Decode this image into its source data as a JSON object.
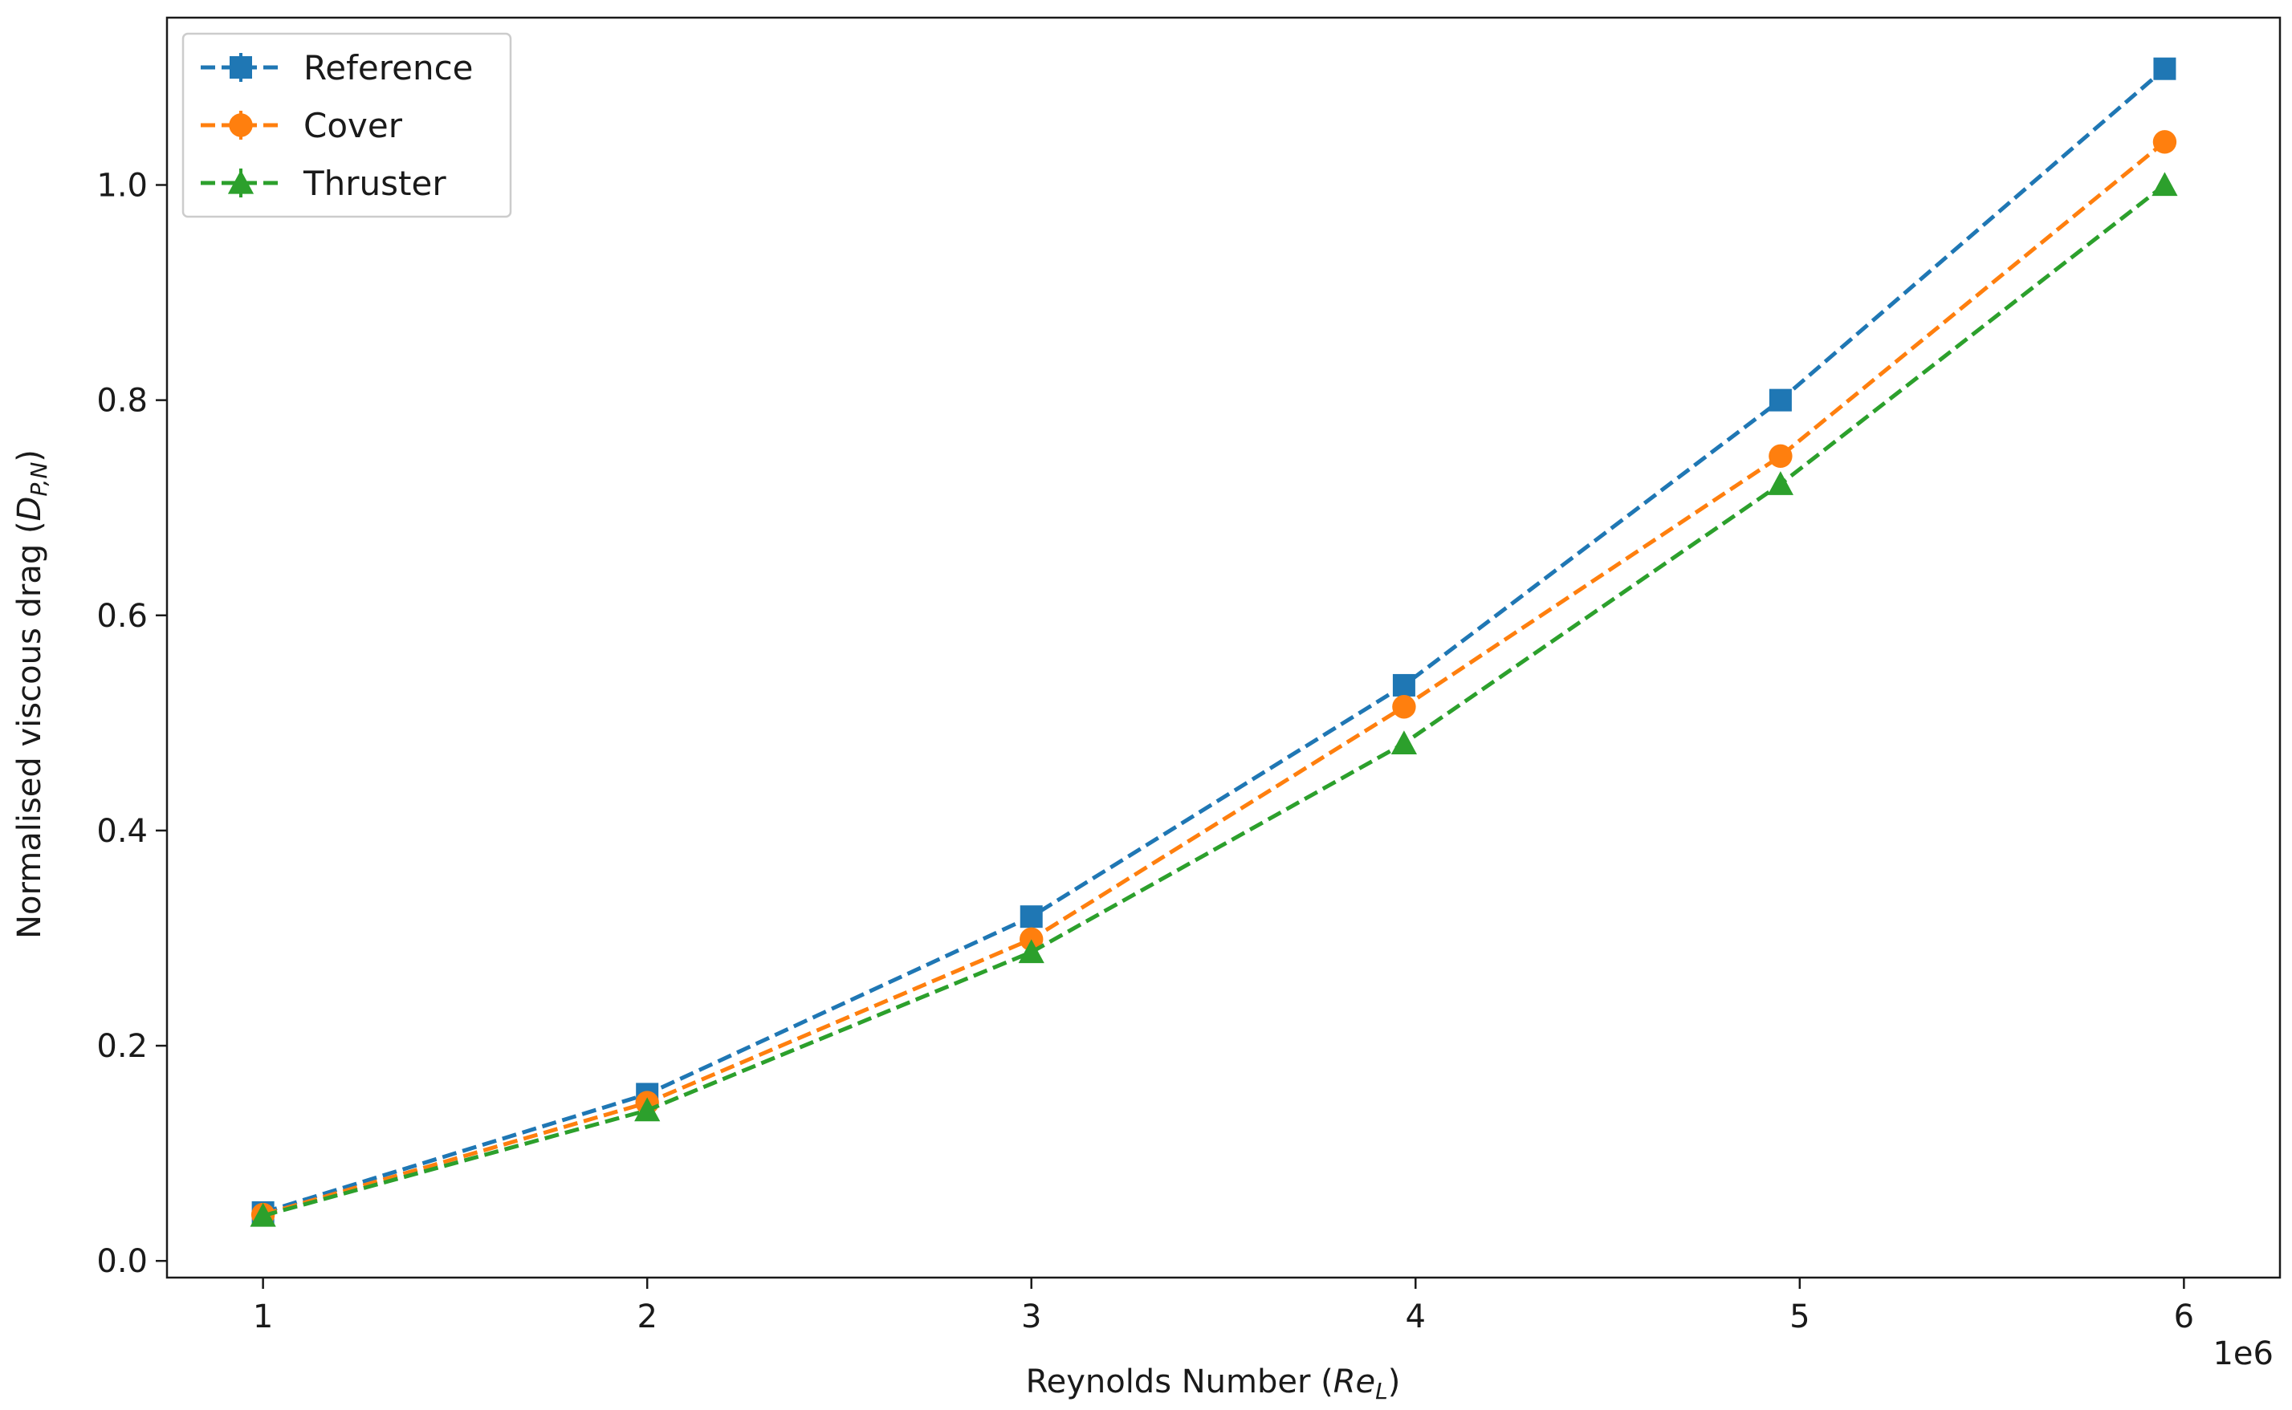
{
  "chart_data": {
    "type": "line",
    "x": [
      1000000,
      2000000,
      3000000,
      3970000,
      4950000,
      5950000
    ],
    "series": [
      {
        "name": "Reference",
        "values": [
          0.045,
          0.155,
          0.32,
          0.535,
          0.8,
          1.108
        ],
        "color": "#1f77b4",
        "marker": "square"
      },
      {
        "name": "Cover",
        "values": [
          0.043,
          0.147,
          0.299,
          0.515,
          0.748,
          1.04
        ],
        "color": "#ff7f0e",
        "marker": "circle"
      },
      {
        "name": "Thruster",
        "values": [
          0.042,
          0.14,
          0.287,
          0.481,
          0.722,
          1.0
        ],
        "color": "#2ca02c",
        "marker": "triangle"
      }
    ],
    "line_style": "dashed",
    "xlabel": "Reynolds Number (",
    "xlabel_math": "Re",
    "xlabel_sub": "L",
    "xlabel_close": ")",
    "ylabel": "Normalised viscous drag (",
    "ylabel_math": "D",
    "ylabel_sub": "P,N",
    "ylabel_close": ")",
    "x_tick_values": [
      1,
      2,
      3,
      4,
      5,
      6
    ],
    "x_tick_labels": [
      "1",
      "2",
      "3",
      "4",
      "5",
      "6"
    ],
    "x_offset_label": "1e6",
    "y_tick_values": [
      0.0,
      0.2,
      0.4,
      0.6,
      0.8,
      1.0
    ],
    "y_tick_labels": [
      "0.0",
      "0.2",
      "0.4",
      "0.6",
      "0.8",
      "1.0"
    ],
    "xlim": [
      0.75,
      6.25
    ],
    "ylim": [
      -0.0155,
      1.1555
    ],
    "grid": false,
    "legend_position": "upper-left"
  }
}
